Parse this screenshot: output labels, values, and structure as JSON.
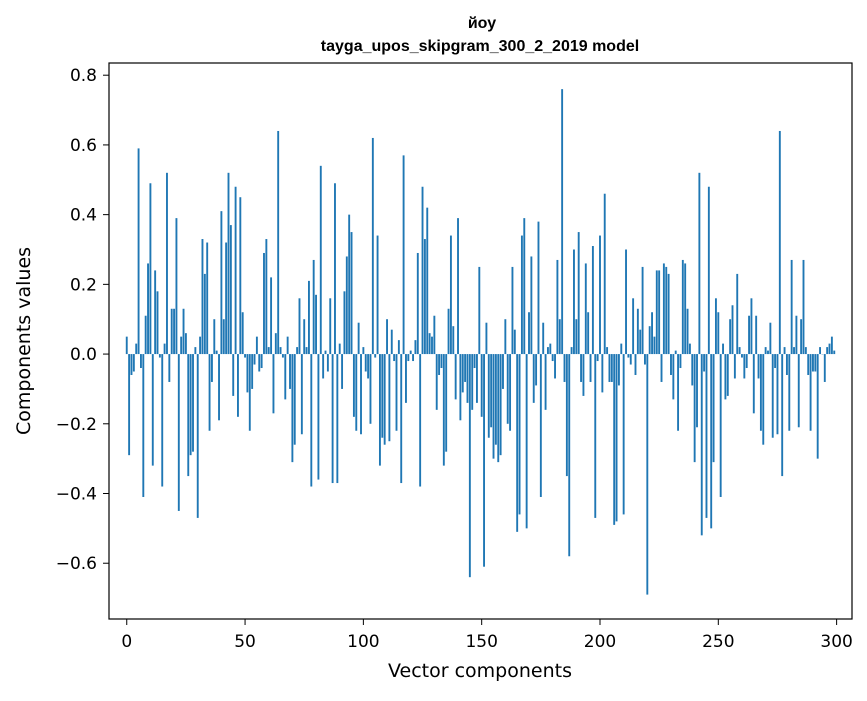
{
  "chart_data": {
    "type": "bar",
    "title_line1": "йоу",
    "title_line2": "tayga_upos_skipgram_300_2_2019 model",
    "xlabel": "Vector components",
    "ylabel": "Components values",
    "xlim": [
      -7.5,
      306.5
    ],
    "ylim": [
      -0.76,
      0.835
    ],
    "x_ticks": [
      0,
      50,
      100,
      150,
      200,
      250,
      300
    ],
    "x_tick_labels": [
      "0",
      "50",
      "100",
      "150",
      "200",
      "250",
      "300"
    ],
    "y_ticks": [
      -0.6,
      -0.4,
      -0.2,
      0.0,
      0.2,
      0.4,
      0.6,
      0.8
    ],
    "y_tick_labels": [
      "−0.6",
      "−0.4",
      "−0.2",
      "0.0",
      "0.2",
      "0.4",
      "0.6",
      "0.8"
    ],
    "bar_color": "#1f77b4",
    "grid": false,
    "values": [
      0.05,
      -0.29,
      -0.06,
      -0.05,
      0.03,
      0.59,
      -0.04,
      -0.41,
      0.11,
      0.26,
      0.49,
      -0.32,
      0.24,
      0.18,
      -0.01,
      -0.38,
      0.03,
      0.52,
      -0.08,
      0.13,
      0.13,
      0.39,
      -0.45,
      0.05,
      0.13,
      0.06,
      -0.35,
      -0.29,
      -0.28,
      0.02,
      -0.47,
      0.05,
      0.33,
      0.23,
      0.32,
      -0.22,
      -0.08,
      0.1,
      0.01,
      -0.19,
      0.41,
      0.1,
      0.32,
      0.52,
      0.37,
      -0.12,
      0.48,
      -0.18,
      0.45,
      0.12,
      -0.01,
      -0.11,
      -0.22,
      -0.1,
      -0.03,
      0.05,
      -0.05,
      -0.04,
      0.29,
      0.33,
      0.02,
      0.22,
      -0.17,
      0.06,
      0.64,
      0.02,
      -0.01,
      -0.13,
      0.05,
      -0.1,
      -0.31,
      -0.26,
      0.02,
      0.16,
      -0.23,
      0.1,
      0.02,
      0.21,
      -0.38,
      0.27,
      0.17,
      -0.36,
      0.54,
      -0.07,
      0.01,
      -0.05,
      0.16,
      -0.37,
      0.49,
      -0.37,
      0.03,
      -0.1,
      0.18,
      0.28,
      0.4,
      0.35,
      -0.18,
      -0.22,
      0.09,
      -0.23,
      0.02,
      -0.05,
      -0.07,
      -0.2,
      0.62,
      -0.01,
      0.34,
      -0.32,
      -0.24,
      -0.26,
      0.1,
      -0.25,
      0.07,
      -0.02,
      -0.22,
      0.04,
      -0.37,
      0.57,
      -0.14,
      -0.02,
      0.01,
      -0.02,
      0.04,
      0.29,
      -0.38,
      0.48,
      0.33,
      0.42,
      0.06,
      0.05,
      0.11,
      -0.16,
      -0.06,
      -0.04,
      -0.32,
      -0.28,
      0.13,
      0.34,
      0.08,
      -0.13,
      0.39,
      -0.19,
      -0.11,
      -0.08,
      -0.14,
      -0.64,
      -0.16,
      -0.04,
      -0.14,
      0.25,
      -0.18,
      -0.61,
      0.09,
      -0.24,
      -0.21,
      -0.3,
      -0.26,
      -0.31,
      -0.29,
      -0.1,
      0.1,
      -0.2,
      -0.22,
      0.25,
      0.07,
      -0.51,
      -0.46,
      0.34,
      0.39,
      -0.5,
      0.12,
      0.28,
      -0.14,
      -0.09,
      0.38,
      -0.41,
      0.09,
      -0.16,
      0.02,
      0.03,
      -0.02,
      -0.07,
      0.27,
      0.1,
      0.76,
      -0.08,
      -0.35,
      -0.58,
      0.02,
      0.3,
      0.1,
      0.35,
      -0.08,
      -0.12,
      0.26,
      0.12,
      -0.08,
      0.31,
      -0.47,
      -0.02,
      0.34,
      -0.11,
      0.46,
      0.02,
      -0.08,
      -0.08,
      -0.49,
      -0.48,
      -0.09,
      0.03,
      -0.46,
      0.3,
      -0.01,
      -0.03,
      0.16,
      -0.06,
      0.13,
      0.07,
      0.25,
      -0.03,
      -0.69,
      0.08,
      0.12,
      0.05,
      0.24,
      0.24,
      -0.08,
      0.26,
      0.25,
      0.23,
      -0.06,
      -0.13,
      0.01,
      -0.22,
      -0.04,
      0.27,
      0.26,
      0.13,
      0.03,
      -0.09,
      -0.31,
      -0.21,
      0.52,
      -0.52,
      -0.05,
      -0.47,
      0.48,
      -0.5,
      -0.31,
      0.16,
      0.12,
      -0.41,
      0.03,
      -0.13,
      -0.12,
      0.1,
      0.14,
      -0.07,
      0.23,
      0.02,
      -0.01,
      -0.07,
      -0.04,
      0.11,
      0.16,
      -0.17,
      0.11,
      -0.07,
      -0.22,
      -0.26,
      0.02,
      0.01,
      0.09,
      -0.24,
      -0.04,
      -0.23,
      0.64,
      -0.35,
      0.02,
      -0.06,
      -0.22,
      0.27,
      0.02,
      0.11,
      -0.21,
      0.1,
      0.27,
      0.02,
      -0.06,
      -0.22,
      -0.05,
      -0.05,
      -0.3,
      0.02,
      0.0,
      -0.08,
      0.02,
      0.03,
      0.05,
      0.01
    ]
  }
}
